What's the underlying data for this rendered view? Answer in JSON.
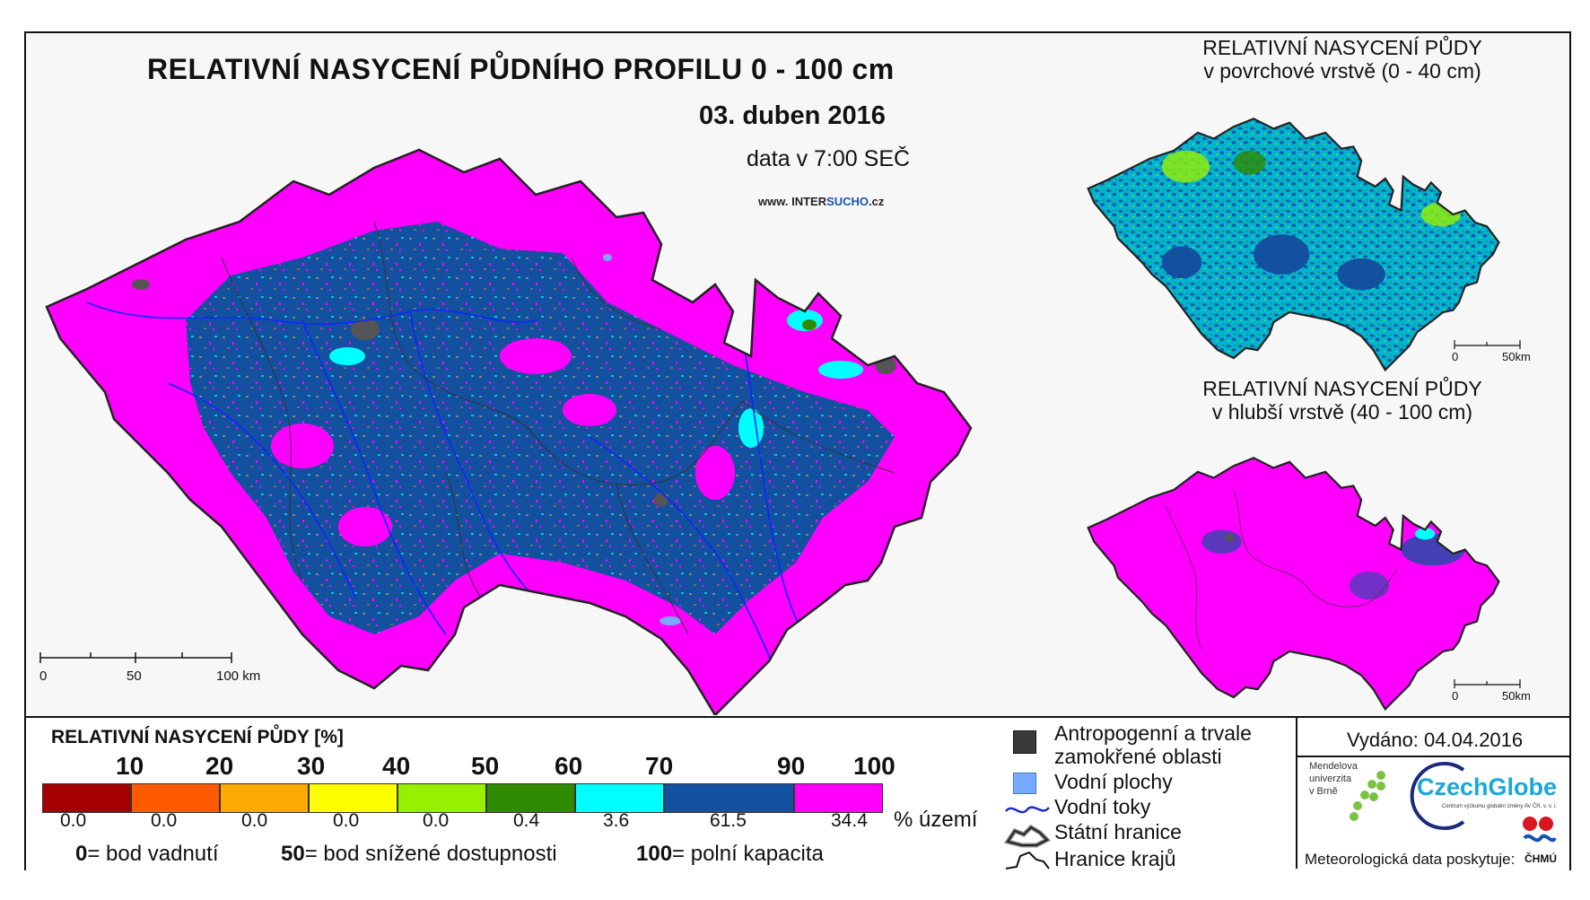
{
  "main": {
    "title": "RELATIVNÍ NASYCENÍ PŮDNÍHO PROFILU 0 - 100 cm",
    "date": "03. duben 2016",
    "data_time": "data v 7:00 SEČ",
    "site_prefix": "www. INTER",
    "site_mid": "SUCHO",
    "site_suffix": ".cz",
    "scale": {
      "zero": "0",
      "mid": "50",
      "end": "100 km"
    }
  },
  "upper_inset": {
    "title_line1": "RELATIVNÍ NASYCENÍ PŮDY",
    "title_line2": "v povrchové vrstvě (0 - 40 cm)",
    "scale": {
      "zero": "0",
      "end": "50km"
    }
  },
  "lower_inset": {
    "title_line1": "RELATIVNÍ NASYCENÍ PŮDY",
    "title_line2": "v hlubší vrstvě (40 - 100 cm)",
    "scale": {
      "zero": "0",
      "end": "50km"
    }
  },
  "legend": {
    "title": "RELATIVNÍ NASYCENÍ PŮDY [%]",
    "ticks": [
      "10",
      "20",
      "30",
      "40",
      "50",
      "60",
      "70",
      "90",
      "100"
    ],
    "classes": [
      {
        "color": "#a50000",
        "percent": "0.0"
      },
      {
        "color": "#ff5a00",
        "percent": "0.0"
      },
      {
        "color": "#ffaa00",
        "percent": "0.0"
      },
      {
        "color": "#ffff00",
        "percent": "0.0"
      },
      {
        "color": "#96f000",
        "percent": "0.0"
      },
      {
        "color": "#2e8b00",
        "percent": "0.4"
      },
      {
        "color": "#00ffff",
        "percent": "3.6"
      },
      {
        "color": "#1450a0",
        "percent": "61.5"
      },
      {
        "color": "#ff00ff",
        "percent": "34.4"
      }
    ],
    "unit": "% území",
    "definitions": [
      {
        "value": "0",
        "text": "= bod vadnutí"
      },
      {
        "value": "50",
        "text": "= bod snížené dostupnosti"
      },
      {
        "value": "100",
        "text": "= polní kapacita"
      }
    ]
  },
  "symbols": {
    "anthropogenic_line1": "Antropogenní a trvale",
    "anthropogenic_line2": "zamokřené oblasti",
    "water_bodies": "Vodní plochy",
    "rivers": "Vodní toky",
    "state_border": "Státní hranice",
    "region_border": "Hranice krajů"
  },
  "issued": "Vydáno: 04.04.2016",
  "credits": {
    "mendel_line1": "Mendelova",
    "mendel_line2": "univerzita",
    "mendel_line3": "v Brně",
    "czechglobe": "CzechGlobe",
    "czechglobe_sub": "Centrum výzkumu globální změny AV ČR, v. v. i.",
    "meteo": "Meteorologická data poskytuje:",
    "chmu": "ČHMÚ"
  },
  "colors": {
    "magenta": "#ff00ff",
    "blue": "#1450a0",
    "cyan": "#00ffff",
    "green": "#2e8b00",
    "lightgreen": "#96f000",
    "anthropogenic": "#555555",
    "water": "#77aaff"
  }
}
